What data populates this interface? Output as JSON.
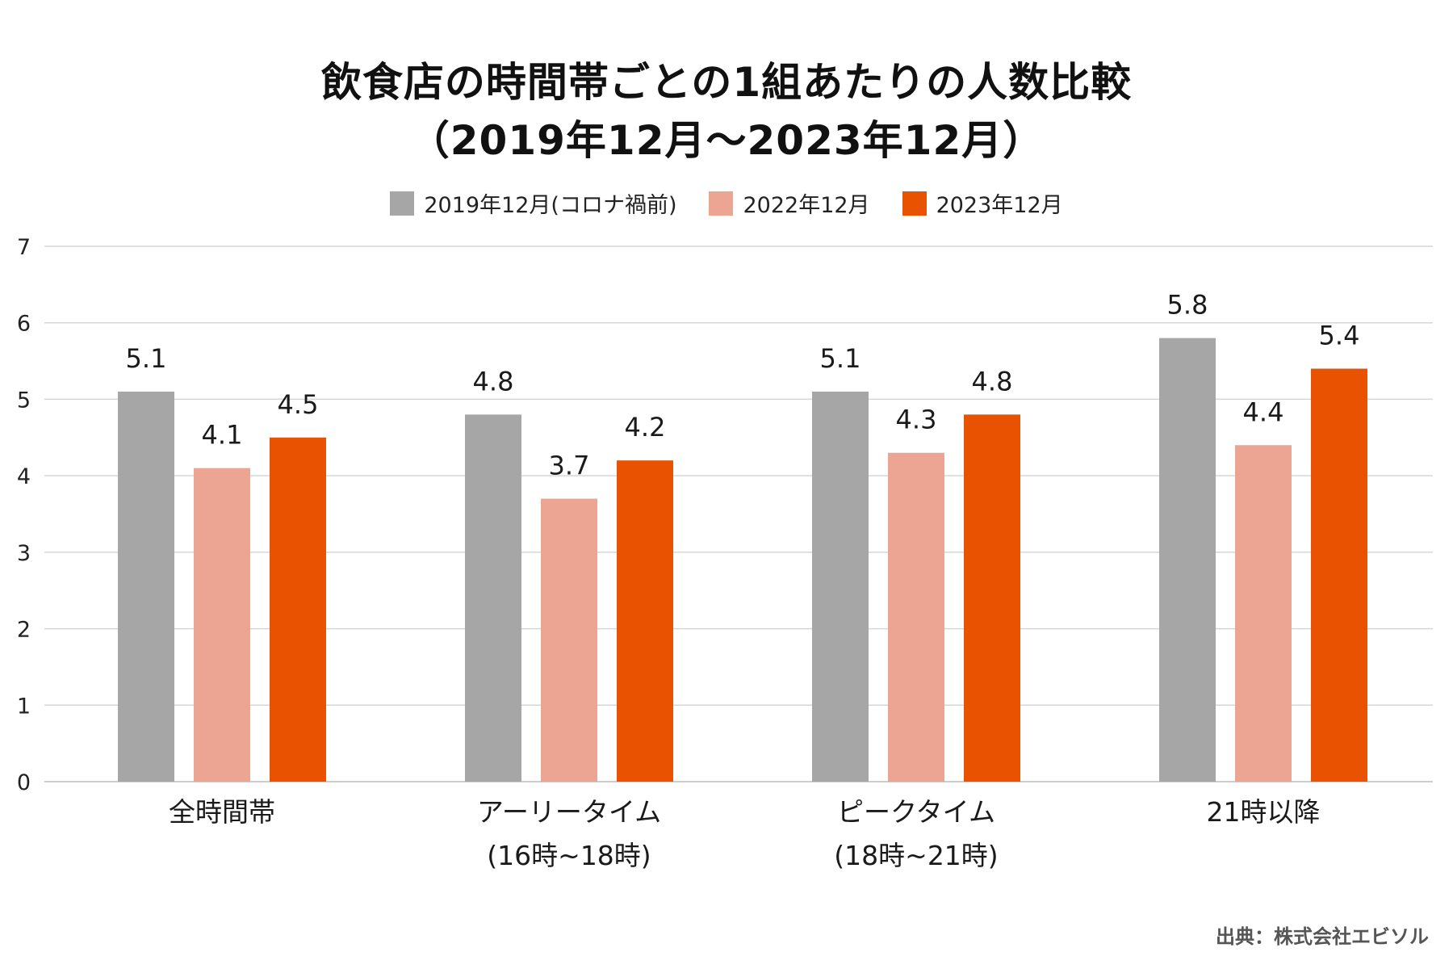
{
  "chart_data": {
    "type": "bar",
    "title": "飲食店の時間帯ごとの1組あたりの人数比較",
    "subtitle": "（2019年12月～2023年12月）",
    "categories": [
      [
        "全時間帯"
      ],
      [
        "アーリータイム",
        "(16時~18時)"
      ],
      [
        "ピークタイム",
        "(18時~21時)"
      ],
      [
        "21時以降"
      ]
    ],
    "series": [
      {
        "name": "2019年12月(コロナ禍前)",
        "color": "#a6a6a6",
        "values": [
          5.1,
          4.8,
          5.1,
          5.8
        ]
      },
      {
        "name": "2022年12月",
        "color": "#eca593",
        "values": [
          4.1,
          3.7,
          4.3,
          4.4
        ]
      },
      {
        "name": "2023年12月",
        "color": "#e85200",
        "values": [
          4.5,
          4.2,
          4.8,
          5.4
        ]
      }
    ],
    "ylim": [
      0,
      7
    ],
    "yticks": [
      "0",
      "1",
      "2",
      "3",
      "4",
      "5",
      "6",
      "7"
    ],
    "xlabel": "",
    "ylabel": "",
    "grid": true,
    "legend_position": "top-center"
  },
  "source": "出典：株式会社エビソル"
}
